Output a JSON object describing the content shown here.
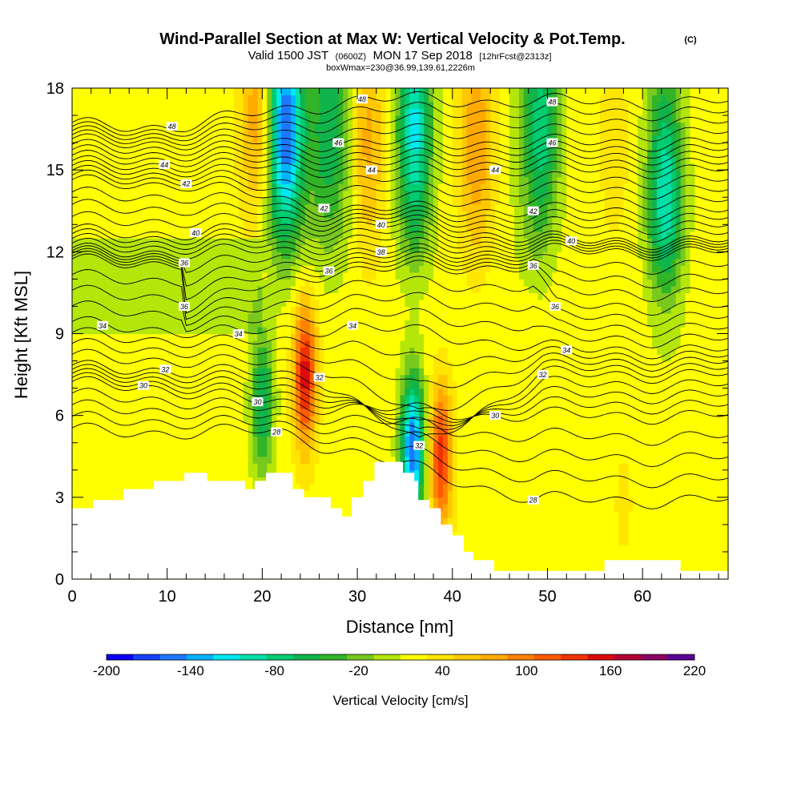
{
  "chart_data": {
    "type": "heatmap",
    "title": "Wind-Parallel Section at Max W: Vertical Velocity & Pot.Temp.",
    "copyright": "(C)",
    "subtitle_parts": [
      "Valid 1500 JST",
      "(0600Z)",
      "MON 17 Sep 2018",
      "[12hrFcst@2313z]"
    ],
    "subtitle2": "boxWmax=230@36.99,139.61,2226m",
    "xlabel": "Distance [nm]",
    "ylabel": "Height [Kft MSL]",
    "xlim": [
      0,
      69
    ],
    "ylim": [
      0,
      18
    ],
    "x_ticks": [
      0,
      10,
      20,
      30,
      40,
      50,
      60
    ],
    "y_ticks": [
      0,
      3,
      6,
      9,
      12,
      15,
      18
    ],
    "colorbar": {
      "label": "Vertical Velocity [cm/s]",
      "min": -200,
      "max": 220,
      "step": 20,
      "tick_values": [
        -200,
        -140,
        -80,
        -20,
        40,
        100,
        160,
        220
      ],
      "colors": [
        "#0a00f5",
        "#1640ff",
        "#1e78ff",
        "#00b4ff",
        "#00e8f0",
        "#00e0a8",
        "#00cc70",
        "#10b44a",
        "#32b428",
        "#78c81e",
        "#b4e60a",
        "#ffff00",
        "#ffe600",
        "#ffc800",
        "#ffaa00",
        "#ff8200",
        "#ff5a00",
        "#f03200",
        "#dc0a0a",
        "#b40032",
        "#8c0064",
        "#5a0096"
      ]
    },
    "updraft_cores": [
      {
        "x": 24.5,
        "z": 7.5,
        "w": 170
      },
      {
        "x": 38.8,
        "z": 4.5,
        "w": 150
      },
      {
        "x": 19.5,
        "z": 17.0,
        "w": 100
      },
      {
        "x": 31.0,
        "z": 16.0,
        "w": 90
      },
      {
        "x": 42.5,
        "z": 16.0,
        "w": 100
      },
      {
        "x": 57.0,
        "z": 16.0,
        "w": 50
      },
      {
        "x": 58.0,
        "z": 2.8,
        "w": 45
      }
    ],
    "downdraft_cores": [
      {
        "x": 22.5,
        "z": 16.5,
        "w": -150
      },
      {
        "x": 35.8,
        "z": 4.8,
        "w": -160
      },
      {
        "x": 20.0,
        "z": 6.5,
        "w": -60
      },
      {
        "x": 27.0,
        "z": 16.5,
        "w": -50
      },
      {
        "x": 36.0,
        "z": 16.5,
        "w": -80
      },
      {
        "x": 49.5,
        "z": 16.5,
        "w": -60
      },
      {
        "x": 62.5,
        "z": 14.0,
        "w": -70
      }
    ],
    "isentrope_labels": [
      {
        "x": 10.5,
        "z": 16.6,
        "text": "48"
      },
      {
        "x": 30.5,
        "z": 17.6,
        "text": "48"
      },
      {
        "x": 50.5,
        "z": 17.5,
        "text": "48"
      },
      {
        "x": 28.0,
        "z": 16.0,
        "text": "46"
      },
      {
        "x": 50.5,
        "z": 16.0,
        "text": "46"
      },
      {
        "x": 9.7,
        "z": 15.2,
        "text": "44"
      },
      {
        "x": 31.5,
        "z": 15.0,
        "text": "44"
      },
      {
        "x": 44.5,
        "z": 15.0,
        "text": "44"
      },
      {
        "x": 12.0,
        "z": 14.5,
        "text": "42"
      },
      {
        "x": 26.5,
        "z": 13.6,
        "text": "42"
      },
      {
        "x": 48.5,
        "z": 13.5,
        "text": "42"
      },
      {
        "x": 13.0,
        "z": 12.7,
        "text": "40"
      },
      {
        "x": 32.5,
        "z": 13.0,
        "text": "40"
      },
      {
        "x": 52.5,
        "z": 12.4,
        "text": "40"
      },
      {
        "x": 32.5,
        "z": 12.0,
        "text": "38"
      },
      {
        "x": 11.8,
        "z": 11.6,
        "text": "36"
      },
      {
        "x": 27.0,
        "z": 11.3,
        "text": "36"
      },
      {
        "x": 48.5,
        "z": 11.5,
        "text": "36"
      },
      {
        "x": 11.8,
        "z": 10.0,
        "text": "36"
      },
      {
        "x": 50.8,
        "z": 10.0,
        "text": "36"
      },
      {
        "x": 3.2,
        "z": 9.3,
        "text": "34"
      },
      {
        "x": 17.5,
        "z": 9.0,
        "text": "34"
      },
      {
        "x": 29.5,
        "z": 9.3,
        "text": "34"
      },
      {
        "x": 52.0,
        "z": 8.4,
        "text": "34"
      },
      {
        "x": 9.8,
        "z": 7.7,
        "text": "32"
      },
      {
        "x": 26.0,
        "z": 7.4,
        "text": "32"
      },
      {
        "x": 36.5,
        "z": 4.9,
        "text": "32"
      },
      {
        "x": 49.5,
        "z": 7.5,
        "text": "32"
      },
      {
        "x": 7.5,
        "z": 7.1,
        "text": "30"
      },
      {
        "x": 19.5,
        "z": 6.5,
        "text": "30"
      },
      {
        "x": 44.5,
        "z": 6.0,
        "text": "30"
      },
      {
        "x": 21.5,
        "z": 5.4,
        "text": "28"
      },
      {
        "x": 48.5,
        "z": 2.9,
        "text": "28"
      }
    ],
    "terrain": [
      [
        0,
        2.6
      ],
      [
        2.2,
        2.6
      ],
      [
        2.2,
        2.9
      ],
      [
        5.4,
        2.9
      ],
      [
        5.4,
        3.3
      ],
      [
        8.6,
        3.3
      ],
      [
        8.6,
        3.6
      ],
      [
        11.8,
        3.6
      ],
      [
        11.8,
        3.9
      ],
      [
        14.2,
        3.9
      ],
      [
        14.2,
        3.6
      ],
      [
        18.2,
        3.6
      ],
      [
        18.2,
        3.3
      ],
      [
        19.2,
        3.3
      ],
      [
        19.2,
        3.6
      ],
      [
        20.4,
        3.6
      ],
      [
        20.4,
        3.9
      ],
      [
        23.2,
        3.9
      ],
      [
        23.2,
        3.3
      ],
      [
        24.4,
        3.3
      ],
      [
        24.4,
        3.0
      ],
      [
        27.2,
        3.0
      ],
      [
        27.2,
        2.6
      ],
      [
        28.4,
        2.6
      ],
      [
        28.4,
        2.3
      ],
      [
        29.4,
        2.3
      ],
      [
        29.4,
        3.0
      ],
      [
        30.6,
        3.0
      ],
      [
        30.6,
        3.6
      ],
      [
        31.8,
        3.6
      ],
      [
        31.8,
        4.3
      ],
      [
        34.8,
        4.3
      ],
      [
        34.8,
        3.9
      ],
      [
        36.0,
        3.9
      ],
      [
        36.0,
        3.6
      ],
      [
        36.4,
        3.6
      ],
      [
        36.4,
        2.9
      ],
      [
        37.6,
        2.9
      ],
      [
        37.6,
        2.6
      ],
      [
        38.8,
        2.6
      ],
      [
        38.8,
        2.0
      ],
      [
        40.0,
        2.0
      ],
      [
        40.0,
        1.6
      ],
      [
        41.2,
        1.6
      ],
      [
        41.2,
        1.0
      ],
      [
        42.2,
        1.0
      ],
      [
        42.2,
        0.7
      ],
      [
        44.4,
        0.7
      ],
      [
        44.4,
        0.3
      ],
      [
        56.0,
        0.3
      ],
      [
        56.0,
        0.7
      ],
      [
        64.0,
        0.7
      ],
      [
        64.0,
        0.3
      ],
      [
        69,
        0.3
      ]
    ]
  }
}
